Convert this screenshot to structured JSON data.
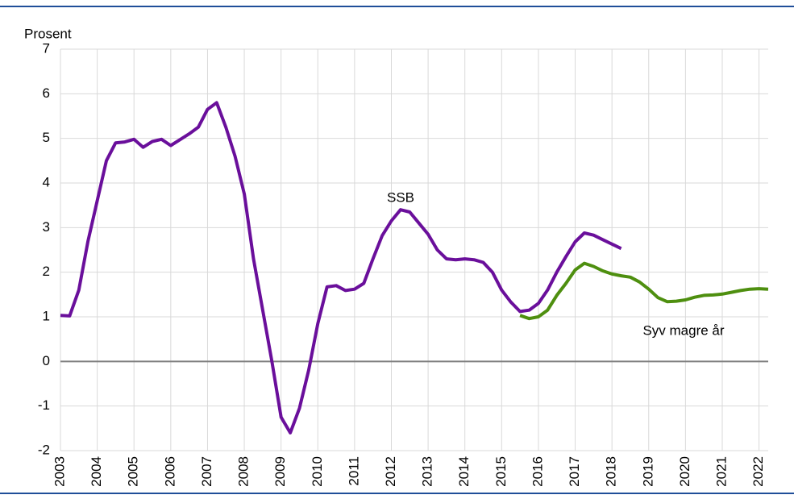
{
  "chart_data": {
    "type": "line",
    "ylabel": "Prosent",
    "xlim": [
      2003,
      2022.25
    ],
    "xticks": [
      2003,
      2004,
      2005,
      2006,
      2007,
      2008,
      2009,
      2010,
      2011,
      2012,
      2013,
      2014,
      2015,
      2016,
      2017,
      2018,
      2019,
      2020,
      2021,
      2022
    ],
    "ylim": [
      -2,
      7
    ],
    "yticks": [
      -2,
      -1,
      0,
      1,
      2,
      3,
      4,
      5,
      6,
      7
    ],
    "grid": true,
    "series": [
      {
        "name": "SSB",
        "color": "#6a0f9b",
        "x": [
          2003,
          2003.25,
          2003.5,
          2003.75,
          2004,
          2004.25,
          2004.5,
          2004.75,
          2005,
          2005.25,
          2005.5,
          2005.75,
          2006,
          2006.25,
          2006.5,
          2006.75,
          2007,
          2007.25,
          2007.5,
          2007.75,
          2008,
          2008.25,
          2008.5,
          2008.75,
          2009,
          2009.25,
          2009.5,
          2009.75,
          2010,
          2010.25,
          2010.5,
          2010.75,
          2011,
          2011.25,
          2011.5,
          2011.75,
          2012,
          2012.25,
          2012.5,
          2012.75,
          2013,
          2013.25,
          2013.5,
          2013.75,
          2014,
          2014.25,
          2014.5,
          2014.75,
          2015,
          2015.25,
          2015.5,
          2015.75,
          2016,
          2016.25,
          2016.5,
          2016.75,
          2017,
          2017.25,
          2017.5,
          2017.75,
          2018,
          2018.25
        ],
        "values": [
          1.03,
          1.02,
          1.6,
          2.7,
          3.6,
          4.5,
          4.9,
          4.92,
          4.98,
          4.8,
          4.93,
          4.98,
          4.84,
          4.97,
          5.1,
          5.25,
          5.65,
          5.8,
          5.25,
          4.6,
          3.75,
          2.3,
          1.15,
          0.0,
          -1.25,
          -1.6,
          -1.05,
          -0.2,
          0.85,
          1.67,
          1.7,
          1.59,
          1.62,
          1.75,
          2.3,
          2.82,
          3.15,
          3.4,
          3.35,
          3.1,
          2.85,
          2.5,
          2.3,
          2.28,
          2.3,
          2.28,
          2.22,
          2.0,
          1.6,
          1.33,
          1.12,
          1.15,
          1.3,
          1.6,
          2.0,
          2.35,
          2.68,
          2.88,
          2.83,
          2.73,
          2.63,
          2.53
        ]
      },
      {
        "name": "Syv magre år",
        "color": "#4e8f0f",
        "x": [
          2015.5,
          2015.75,
          2016,
          2016.25,
          2016.5,
          2016.75,
          2017,
          2017.25,
          2017.5,
          2017.75,
          2018,
          2018.25,
          2018.5,
          2018.75,
          2019,
          2019.25,
          2019.5,
          2019.75,
          2020,
          2020.25,
          2020.5,
          2020.75,
          2021,
          2021.25,
          2021.5,
          2021.75,
          2022,
          2022.25
        ],
        "values": [
          1.03,
          0.96,
          1.0,
          1.15,
          1.48,
          1.75,
          2.05,
          2.2,
          2.13,
          2.03,
          1.96,
          1.92,
          1.89,
          1.78,
          1.62,
          1.43,
          1.34,
          1.35,
          1.38,
          1.44,
          1.48,
          1.49,
          1.51,
          1.55,
          1.59,
          1.62,
          1.63,
          1.62
        ]
      }
    ]
  }
}
